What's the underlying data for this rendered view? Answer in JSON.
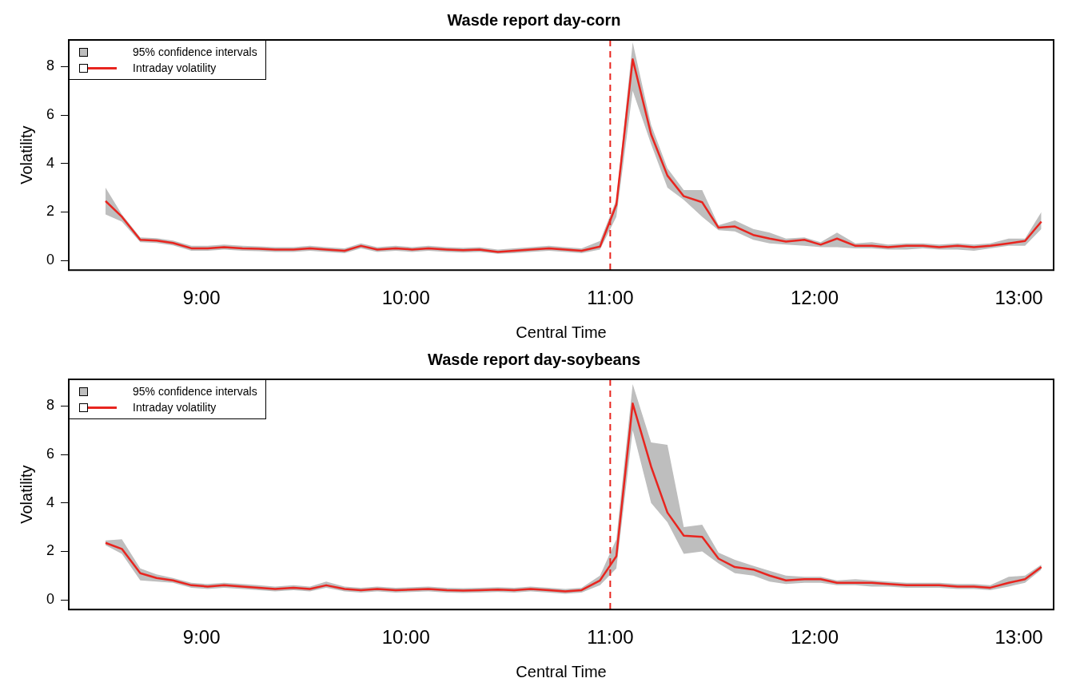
{
  "chart_data": [
    {
      "type": "line",
      "title": "Wasde report day-corn",
      "xlabel": "Central Time",
      "ylabel": "Volatility",
      "x": [
        8.53,
        8.61,
        8.7,
        8.78,
        8.86,
        8.95,
        9.03,
        9.11,
        9.2,
        9.28,
        9.36,
        9.45,
        9.53,
        9.61,
        9.7,
        9.78,
        9.86,
        9.95,
        10.03,
        10.11,
        10.2,
        10.28,
        10.36,
        10.45,
        10.53,
        10.61,
        10.7,
        10.78,
        10.86,
        10.95,
        11.03,
        11.11,
        11.2,
        11.28,
        11.36,
        11.45,
        11.53,
        11.61,
        11.7,
        11.78,
        11.86,
        11.95,
        12.03,
        12.11,
        12.2,
        12.28,
        12.36,
        12.45,
        12.53,
        12.61,
        12.7,
        12.78,
        12.86,
        12.95,
        13.03,
        13.11
      ],
      "series": [
        {
          "name": "Intraday volatility",
          "color": "#e8251f",
          "values": [
            2.45,
            1.8,
            0.85,
            0.82,
            0.72,
            0.5,
            0.5,
            0.55,
            0.5,
            0.48,
            0.45,
            0.45,
            0.5,
            0.45,
            0.4,
            0.6,
            0.45,
            0.5,
            0.45,
            0.5,
            0.45,
            0.42,
            0.45,
            0.35,
            0.4,
            0.45,
            0.5,
            0.45,
            0.4,
            0.57,
            2.3,
            8.3,
            5.2,
            3.5,
            2.65,
            2.4,
            1.35,
            1.4,
            1.05,
            0.9,
            0.78,
            0.85,
            0.65,
            0.9,
            0.6,
            0.6,
            0.55,
            0.6,
            0.6,
            0.55,
            0.6,
            0.55,
            0.6,
            0.7,
            0.8,
            1.6
          ],
          "lower": [
            1.9,
            1.6,
            0.75,
            0.72,
            0.62,
            0.4,
            0.4,
            0.45,
            0.4,
            0.38,
            0.35,
            0.35,
            0.4,
            0.35,
            0.3,
            0.5,
            0.35,
            0.4,
            0.35,
            0.4,
            0.35,
            0.32,
            0.35,
            0.27,
            0.3,
            0.35,
            0.4,
            0.35,
            0.3,
            0.45,
            1.8,
            7.0,
            4.8,
            3.0,
            2.5,
            1.8,
            1.25,
            1.2,
            0.85,
            0.7,
            0.65,
            0.6,
            0.55,
            0.55,
            0.5,
            0.5,
            0.45,
            0.45,
            0.5,
            0.45,
            0.45,
            0.4,
            0.5,
            0.6,
            0.6,
            1.3
          ],
          "upper": [
            3.0,
            1.9,
            0.95,
            0.92,
            0.82,
            0.6,
            0.6,
            0.65,
            0.6,
            0.58,
            0.55,
            0.55,
            0.6,
            0.55,
            0.5,
            0.7,
            0.55,
            0.6,
            0.55,
            0.6,
            0.55,
            0.52,
            0.55,
            0.45,
            0.5,
            0.55,
            0.6,
            0.55,
            0.5,
            0.8,
            2.5,
            9.0,
            5.6,
            3.8,
            2.9,
            2.9,
            1.45,
            1.65,
            1.3,
            1.15,
            0.9,
            0.95,
            0.75,
            1.15,
            0.7,
            0.75,
            0.65,
            0.7,
            0.7,
            0.65,
            0.7,
            0.65,
            0.7,
            0.9,
            0.9,
            2.0
          ]
        }
      ],
      "annotations": [
        "95% confidence intervals"
      ],
      "ref_lines": [
        {
          "axis": "x",
          "value": 11,
          "color": "#e8251f",
          "line_style": "dashed"
        }
      ],
      "xlim": [
        8.35,
        13.17
      ],
      "xticks": [
        {
          "value": 9,
          "label": "9:00"
        },
        {
          "value": 10,
          "label": "10:00"
        },
        {
          "value": 11,
          "label": "11:00"
        },
        {
          "value": 12,
          "label": "12:00"
        },
        {
          "value": 13,
          "label": "13:00"
        }
      ],
      "ylim": [
        -0.4,
        9.1
      ],
      "yticks": [
        0,
        2,
        4,
        6,
        8
      ],
      "legend": "top left",
      "grid": false,
      "marker": "none",
      "line_style": "solid"
    },
    {
      "type": "line",
      "title": "Wasde report day-soybeans",
      "xlabel": "Central Time",
      "ylabel": "Volatility",
      "x": [
        8.53,
        8.61,
        8.7,
        8.78,
        8.86,
        8.95,
        9.03,
        9.11,
        9.2,
        9.28,
        9.36,
        9.45,
        9.53,
        9.61,
        9.7,
        9.78,
        9.86,
        9.95,
        10.03,
        10.11,
        10.2,
        10.28,
        10.36,
        10.45,
        10.53,
        10.61,
        10.7,
        10.78,
        10.86,
        10.95,
        11.03,
        11.11,
        11.2,
        11.28,
        11.36,
        11.45,
        11.53,
        11.61,
        11.7,
        11.78,
        11.86,
        11.95,
        12.03,
        12.11,
        12.2,
        12.28,
        12.36,
        12.45,
        12.53,
        12.61,
        12.7,
        12.78,
        12.86,
        12.95,
        13.03,
        13.11
      ],
      "series": [
        {
          "name": "Intraday volatility",
          "color": "#e8251f",
          "values": [
            2.35,
            2.1,
            1.1,
            0.9,
            0.8,
            0.6,
            0.55,
            0.6,
            0.55,
            0.5,
            0.45,
            0.5,
            0.45,
            0.6,
            0.45,
            0.4,
            0.45,
            0.4,
            0.42,
            0.45,
            0.4,
            0.38,
            0.4,
            0.42,
            0.4,
            0.45,
            0.4,
            0.35,
            0.4,
            0.8,
            1.8,
            8.1,
            5.5,
            3.6,
            2.65,
            2.6,
            1.7,
            1.35,
            1.25,
            1.0,
            0.8,
            0.85,
            0.85,
            0.7,
            0.7,
            0.7,
            0.65,
            0.6,
            0.6,
            0.6,
            0.55,
            0.55,
            0.5,
            0.7,
            0.85,
            1.35
          ],
          "lower": [
            2.25,
            1.9,
            0.8,
            0.75,
            0.7,
            0.5,
            0.45,
            0.5,
            0.45,
            0.4,
            0.35,
            0.4,
            0.35,
            0.5,
            0.35,
            0.3,
            0.35,
            0.3,
            0.32,
            0.35,
            0.3,
            0.28,
            0.3,
            0.32,
            0.3,
            0.35,
            0.3,
            0.25,
            0.3,
            0.6,
            1.3,
            7.0,
            4.0,
            3.2,
            1.9,
            2.0,
            1.5,
            1.1,
            1.0,
            0.75,
            0.65,
            0.7,
            0.7,
            0.6,
            0.6,
            0.55,
            0.55,
            0.5,
            0.5,
            0.5,
            0.45,
            0.45,
            0.4,
            0.55,
            0.7,
            1.25
          ],
          "upper": [
            2.45,
            2.5,
            1.3,
            1.05,
            0.9,
            0.7,
            0.65,
            0.7,
            0.65,
            0.6,
            0.55,
            0.6,
            0.55,
            0.75,
            0.55,
            0.5,
            0.55,
            0.5,
            0.52,
            0.55,
            0.5,
            0.48,
            0.5,
            0.52,
            0.5,
            0.55,
            0.5,
            0.45,
            0.5,
            1.0,
            2.5,
            8.9,
            6.5,
            6.4,
            3.0,
            3.1,
            1.95,
            1.65,
            1.4,
            1.2,
            1.0,
            0.95,
            0.95,
            0.8,
            0.85,
            0.8,
            0.75,
            0.7,
            0.7,
            0.7,
            0.65,
            0.65,
            0.6,
            0.95,
            1.0,
            1.45
          ]
        }
      ],
      "annotations": [
        "95% confidence intervals"
      ],
      "ref_lines": [
        {
          "axis": "x",
          "value": 11,
          "color": "#e8251f",
          "line_style": "dashed"
        }
      ],
      "xlim": [
        8.35,
        13.17
      ],
      "xticks": [
        {
          "value": 9,
          "label": "9:00"
        },
        {
          "value": 10,
          "label": "10:00"
        },
        {
          "value": 11,
          "label": "11:00"
        },
        {
          "value": 12,
          "label": "12:00"
        },
        {
          "value": 13,
          "label": "13:00"
        }
      ],
      "ylim": [
        -0.4,
        9.1
      ],
      "yticks": [
        0,
        2,
        4,
        6,
        8
      ],
      "legend": "top left",
      "grid": false,
      "marker": "none",
      "line_style": "solid"
    }
  ]
}
